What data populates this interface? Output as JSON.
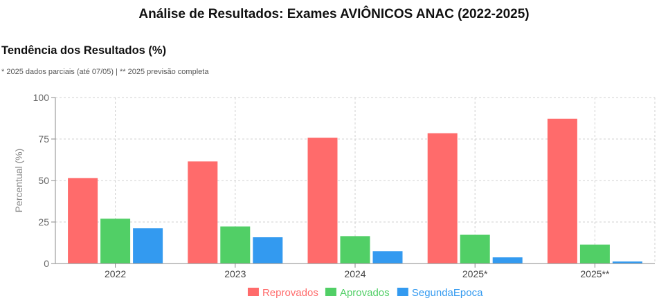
{
  "page": {
    "title": "Análise de Resultados: Exames AVIÔNICOS ANAC (2022-2025)",
    "section_title": "Tendência dos Resultados (%)",
    "footnote": "* 2025 dados parciais (até 07/05) | ** 2025 previsão completa"
  },
  "chart_data": {
    "type": "bar",
    "title": "Tendência dos Resultados (%)",
    "subtitle": "* 2025 dados parciais (até 07/05) | ** 2025 previsão completa",
    "xlabel": "",
    "ylabel": "Percentual (%)",
    "ylim": [
      0,
      100
    ],
    "yticks": [
      0,
      25,
      50,
      75,
      100
    ],
    "grid": true,
    "legend_position": "bottom-center",
    "categories": [
      "2022",
      "2023",
      "2024",
      "2025*",
      "2025**"
    ],
    "series": [
      {
        "name": "Reprovados",
        "color": "#ff6b6b",
        "values": [
          51.5,
          61.5,
          75.8,
          78.5,
          87.2
        ]
      },
      {
        "name": "Aprovados",
        "color": "#51cf66",
        "values": [
          27.0,
          22.3,
          16.5,
          17.3,
          11.4
        ]
      },
      {
        "name": "SegundaEpoca",
        "color": "#339af0",
        "values": [
          21.2,
          15.8,
          7.4,
          3.7,
          1.2
        ]
      }
    ]
  }
}
